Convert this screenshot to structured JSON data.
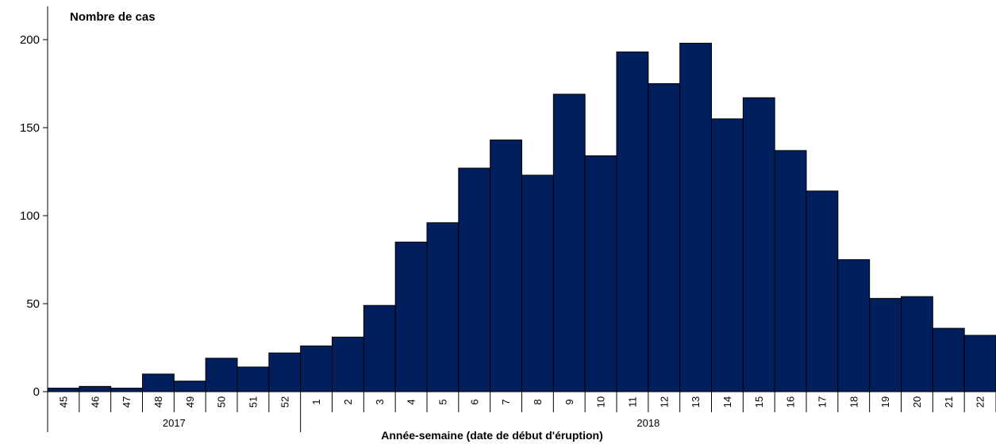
{
  "chart_data": {
    "type": "bar",
    "ylabel": "Nombre de cas",
    "xlabel": "Année-semaine (date de début d'éruption)",
    "ylim": [
      0,
      200
    ],
    "yticks": [
      0,
      50,
      100,
      150,
      200
    ],
    "bar_color": "#001f5c",
    "grid": false,
    "categories": [
      "45",
      "46",
      "47",
      "48",
      "49",
      "50",
      "51",
      "52",
      "1",
      "2",
      "3",
      "4",
      "5",
      "6",
      "7",
      "8",
      "9",
      "10",
      "11",
      "12",
      "13",
      "14",
      "15",
      "16",
      "17",
      "18",
      "19",
      "20",
      "21",
      "22"
    ],
    "values": [
      2,
      3,
      2,
      10,
      6,
      19,
      14,
      22,
      26,
      31,
      49,
      85,
      96,
      127,
      143,
      123,
      169,
      134,
      193,
      175,
      198,
      155,
      167,
      137,
      114,
      75,
      53,
      54,
      36,
      32
    ],
    "year_groups": [
      {
        "label": "2017",
        "count": 8
      },
      {
        "label": "2018",
        "count": 22
      }
    ]
  }
}
